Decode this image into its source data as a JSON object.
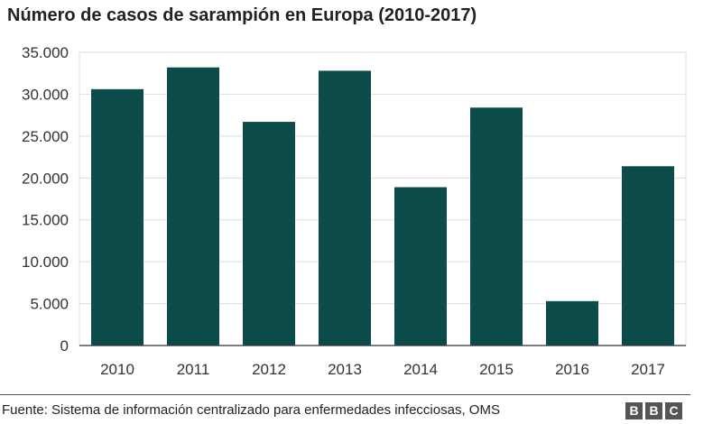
{
  "title": "Número de casos de sarampión en Europa (2010-2017)",
  "source": "Fuente: Sistema de información centralizado para enfermedades infecciosas, OMS",
  "logo_letters": [
    "B",
    "B",
    "C"
  ],
  "colors": {
    "bar": "#0b4b4a",
    "grid": "#dddddd",
    "axis": "#333333"
  },
  "chart_data": {
    "type": "bar",
    "title": "Número de casos de sarampión en Europa (2010-2017)",
    "categories": [
      "2010",
      "2011",
      "2012",
      "2013",
      "2014",
      "2015",
      "2016",
      "2017"
    ],
    "values": [
      30600,
      33200,
      26700,
      32800,
      18900,
      28400,
      5300,
      21400
    ],
    "ylim": [
      0,
      35000
    ],
    "yticks": [
      0,
      5000,
      10000,
      15000,
      20000,
      25000,
      30000,
      35000
    ],
    "ytick_labels": [
      "0",
      "5.000",
      "10.000",
      "15.000",
      "20.000",
      "25.000",
      "30.000",
      "35.000"
    ],
    "xlabel": "",
    "ylabel": "",
    "grid": true,
    "legend": "none"
  }
}
